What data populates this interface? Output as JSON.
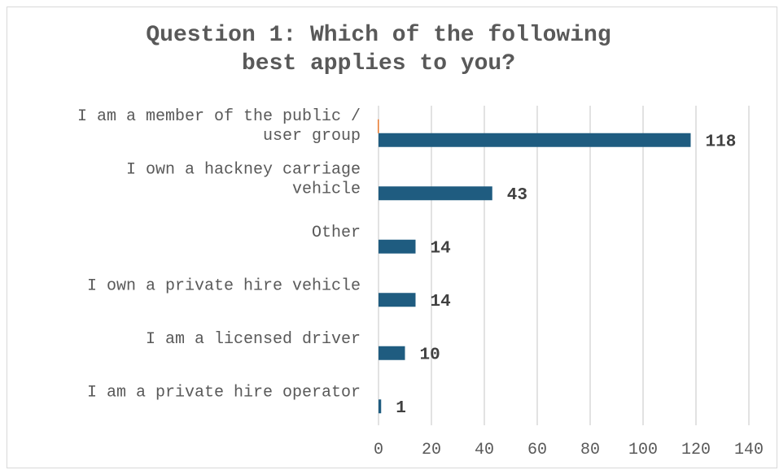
{
  "chart_data": {
    "type": "bar",
    "orientation": "horizontal",
    "title_lines": [
      "Question 1:  Which of the following",
      "best applies to you?"
    ],
    "categories": [
      [
        "I am a member of the public /",
        "user group"
      ],
      [
        "I own a hackney carriage",
        "vehicle"
      ],
      [
        "Other"
      ],
      [
        "I own a private hire vehicle"
      ],
      [
        "I am a licensed driver"
      ],
      [
        "I am a private hire operator"
      ]
    ],
    "series": [
      {
        "color": "#1f5c80",
        "values": [
          118,
          43,
          14,
          14,
          10,
          1
        ]
      },
      {
        "color": "#ed7d31",
        "values": [
          0.3,
          0,
          0,
          0,
          0,
          0
        ]
      }
    ],
    "data_labels": [
      "118",
      "43",
      "14",
      "14",
      "10",
      "1"
    ],
    "xlim": [
      0,
      140
    ],
    "xticks": [
      0,
      20,
      40,
      60,
      80,
      100,
      120,
      140
    ],
    "grid": "vertical",
    "legend": "none"
  }
}
